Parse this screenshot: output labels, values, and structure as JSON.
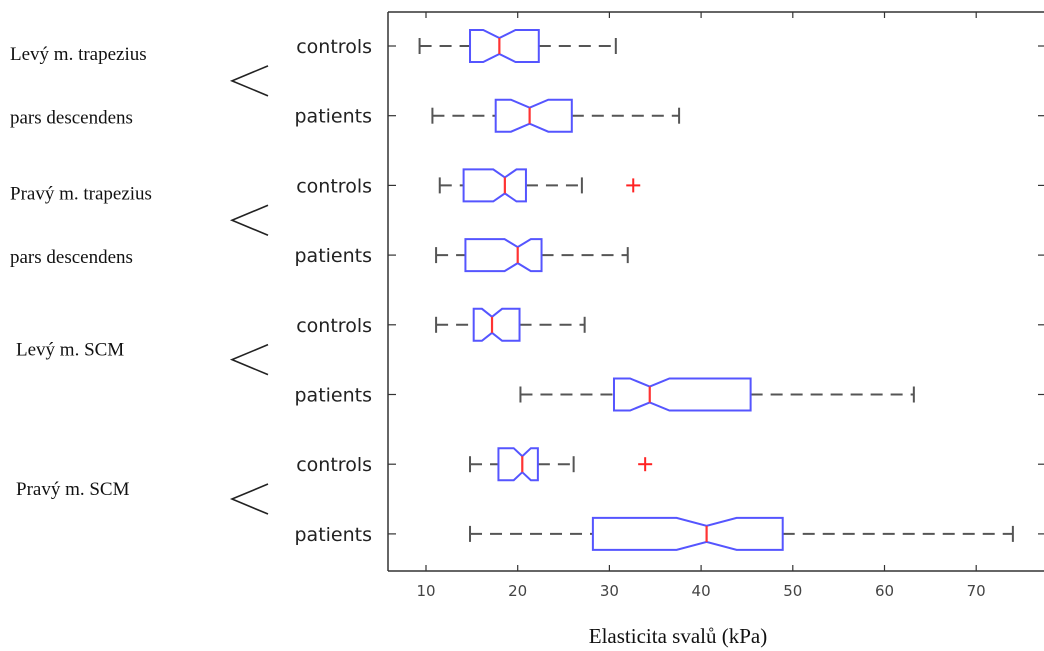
{
  "chart_data": {
    "type": "boxplot",
    "orientation": "horizontal",
    "notched": true,
    "xlabel": "Elasticita svalů (kPa)",
    "xlim": [
      6,
      75
    ],
    "xticks": [
      10,
      20,
      30,
      40,
      50,
      60,
      70
    ],
    "groups": [
      {
        "label_lines": [
          "Levý m. trapezius",
          "pars descendens"
        ],
        "rows": [
          {
            "category": "controls",
            "whisker_low": 9.3,
            "q1": 14.8,
            "median": 18.0,
            "q3": 22.3,
            "whisker_high": 30.7,
            "outliers": []
          },
          {
            "category": "patients",
            "whisker_low": 10.7,
            "q1": 17.6,
            "median": 21.3,
            "q3": 25.9,
            "whisker_high": 37.6,
            "outliers": []
          }
        ]
      },
      {
        "label_lines": [
          "Pravý m. trapezius",
          "pars descendens"
        ],
        "rows": [
          {
            "category": "controls",
            "whisker_low": 11.5,
            "q1": 14.1,
            "median": 18.6,
            "q3": 20.9,
            "whisker_high": 27.0,
            "outliers": [
              32.6
            ]
          },
          {
            "category": "patients",
            "whisker_low": 11.1,
            "q1": 14.3,
            "median": 20.0,
            "q3": 22.6,
            "whisker_high": 32.0,
            "outliers": []
          }
        ]
      },
      {
        "label_lines": [
          "Levý m. SCM"
        ],
        "rows": [
          {
            "category": "controls",
            "whisker_low": 11.1,
            "q1": 15.2,
            "median": 17.2,
            "q3": 20.2,
            "whisker_high": 27.3,
            "outliers": []
          },
          {
            "category": "patients",
            "whisker_low": 20.3,
            "q1": 30.5,
            "median": 34.4,
            "q3": 45.4,
            "whisker_high": 63.2,
            "outliers": []
          }
        ]
      },
      {
        "label_lines": [
          "Pravý m. SCM"
        ],
        "rows": [
          {
            "category": "controls",
            "whisker_low": 14.8,
            "q1": 17.9,
            "median": 20.5,
            "q3": 22.2,
            "whisker_high": 26.1,
            "outliers": [
              33.9
            ]
          },
          {
            "category": "patients",
            "whisker_low": 14.8,
            "q1": 28.2,
            "median": 40.6,
            "q3": 48.9,
            "whisker_high": 74.0,
            "outliers": []
          }
        ]
      }
    ],
    "colors": {
      "box": "#5555ff",
      "median": "#ff3333",
      "outlier": "#ff2222",
      "whisker": "#555555",
      "axis": "#333333"
    }
  }
}
